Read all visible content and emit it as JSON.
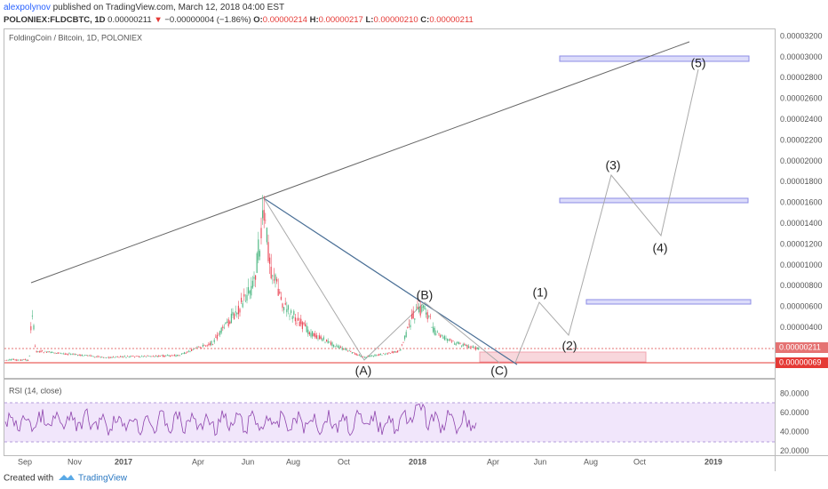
{
  "header": {
    "author": "alexpolynov",
    "published": "published on TradingView.com, March 12, 2018 04:00 EST",
    "symbol": "POLONIEX:FLDCBTC, 1D",
    "last": "0.00000211",
    "arrow": "▼",
    "change": "−0.00000004 (−1.86%)",
    "o_label": "O:",
    "o": "0.00000214",
    "h_label": "H:",
    "h": "0.00000217",
    "l_label": "L:",
    "l": "0.00000210",
    "c_label": "C:",
    "c": "0.00000211"
  },
  "main_panel": {
    "legend": "FoldingCoin / Bitcoin, 1D, POLONIEX",
    "price_ticks": [
      "0.00003200",
      "0.00003000",
      "0.00002800",
      "0.00002600",
      "0.00002400",
      "0.00002200",
      "0.00002000",
      "0.00001800",
      "0.00001600",
      "0.00001400",
      "0.00001200",
      "0.00001000",
      "0.00000800",
      "0.00000600",
      "0.00000400"
    ],
    "last_price_label": "0.00000211",
    "low_line_label": "0.00000069",
    "waves": [
      "(A)",
      "(B)",
      "(C)",
      "(1)",
      "(2)",
      "(3)",
      "(4)",
      "(5)"
    ]
  },
  "rsi_panel": {
    "legend": "RSI (14, close)",
    "ticks": [
      "80.0000",
      "60.0000",
      "40.0000",
      "20.0000"
    ]
  },
  "time_axis": [
    "Sep",
    "Nov",
    "2017",
    "Apr",
    "Jun",
    "Aug",
    "Oct",
    "2018",
    "Apr",
    "Jun",
    "Aug",
    "Oct",
    "2019"
  ],
  "footer": {
    "created": "Created with",
    "brand": "TradingView"
  }
}
